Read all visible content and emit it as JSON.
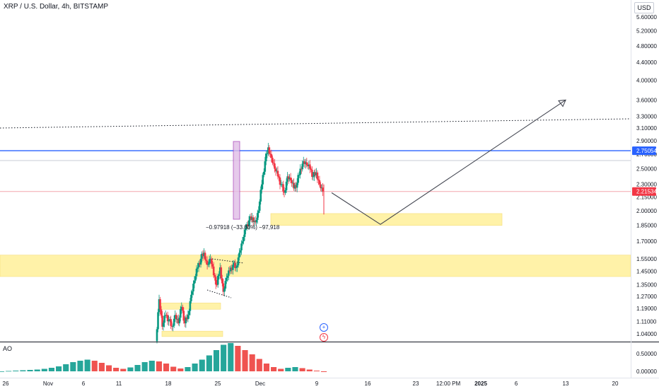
{
  "header": {
    "title": "XRP / U.S. Dollar, 4h, BITSTAMP",
    "currency": "USD"
  },
  "indicator": {
    "name": "AO"
  },
  "annotation": {
    "measure_label": "−0.97918 (−33.83%) −97,918"
  },
  "price_tags": [
    {
      "label": "2.75054",
      "color": "#2962ff"
    },
    {
      "label": "2.21534",
      "color": "#f23645"
    }
  ],
  "icons": {
    "plus": "plus-circle-icon",
    "flash": "flash-circle-icon"
  },
  "chart_data": {
    "type": "candlestick",
    "symbol": "XRP / U.S. Dollar",
    "interval": "4h",
    "exchange": "BITSTAMP",
    "y_scale": "log",
    "ylim": [
      1.0,
      6.0
    ],
    "y_ticks": [
      "5.60000",
      "5.20000",
      "4.80000",
      "4.40000",
      "4.00000",
      "3.60000",
      "3.30000",
      "3.10000",
      "2.90000",
      "2.70000",
      "2.50000",
      "2.30000",
      "2.15000",
      "2.00000",
      "1.85000",
      "1.70000",
      "1.55000",
      "1.45000",
      "1.35000",
      "1.27000",
      "1.19000",
      "1.11000",
      "1.04000"
    ],
    "x_ticks": [
      "26",
      "Nov",
      "6",
      "11",
      "18",
      "25",
      "Dec",
      "9",
      "16",
      "23",
      "12:00 PM",
      "2025",
      "6",
      "13",
      "20"
    ],
    "ohlc_path": [
      1.0,
      1.25,
      1.08,
      1.15,
      1.12,
      1.08,
      1.15,
      1.1,
      1.2,
      1.1,
      1.15,
      1.28,
      1.38,
      1.48,
      1.55,
      1.6,
      1.5,
      1.55,
      1.42,
      1.35,
      1.48,
      1.3,
      1.4,
      1.45,
      1.5,
      1.48,
      1.6,
      1.7,
      1.82,
      1.9,
      1.93,
      1.88,
      2.0,
      2.3,
      2.6,
      2.8,
      2.65,
      2.5,
      2.4,
      2.3,
      2.2,
      2.4,
      2.35,
      2.25,
      2.32,
      2.5,
      2.6,
      2.55,
      2.5,
      2.4,
      2.45,
      2.3,
      2.2153
    ],
    "horizontal_lines": [
      {
        "value": 2.75054,
        "color": "#2962ff",
        "style": "solid"
      },
      {
        "value": 2.61,
        "color": "#c8ccd6",
        "style": "solid"
      },
      {
        "value": 2.21534,
        "color": "#f4a6ae",
        "style": "solid"
      }
    ],
    "zones": [
      {
        "low": 1.41,
        "high": 1.58,
        "color": "#fff2a8"
      },
      {
        "low": 1.85,
        "high": 1.97,
        "color": "#fff2a8"
      },
      {
        "low": 1.185,
        "high": 1.225,
        "color": "#fff2a8"
      },
      {
        "low": 1.025,
        "high": 1.055,
        "color": "#fff2a8"
      }
    ],
    "projection": {
      "points": [
        2.2,
        1.86,
        3.6
      ],
      "color": "#434651"
    },
    "ao": {
      "y_ticks": [
        "0.50000",
        "0.00000"
      ],
      "histogram": [
        0.0,
        0.01,
        0.02,
        0.03,
        0.04,
        0.05,
        0.07,
        0.1,
        0.14,
        0.2,
        0.26,
        0.3,
        0.33,
        0.3,
        0.24,
        0.17,
        0.1,
        0.07,
        0.11,
        0.18,
        0.26,
        0.3,
        0.28,
        0.22,
        0.13,
        0.08,
        0.12,
        0.22,
        0.33,
        0.45,
        0.6,
        0.75,
        0.8,
        0.72,
        0.6,
        0.48,
        0.35,
        0.22,
        0.12,
        0.07,
        0.1,
        0.12,
        0.09,
        0.05,
        0.02,
        -0.02
      ]
    }
  }
}
